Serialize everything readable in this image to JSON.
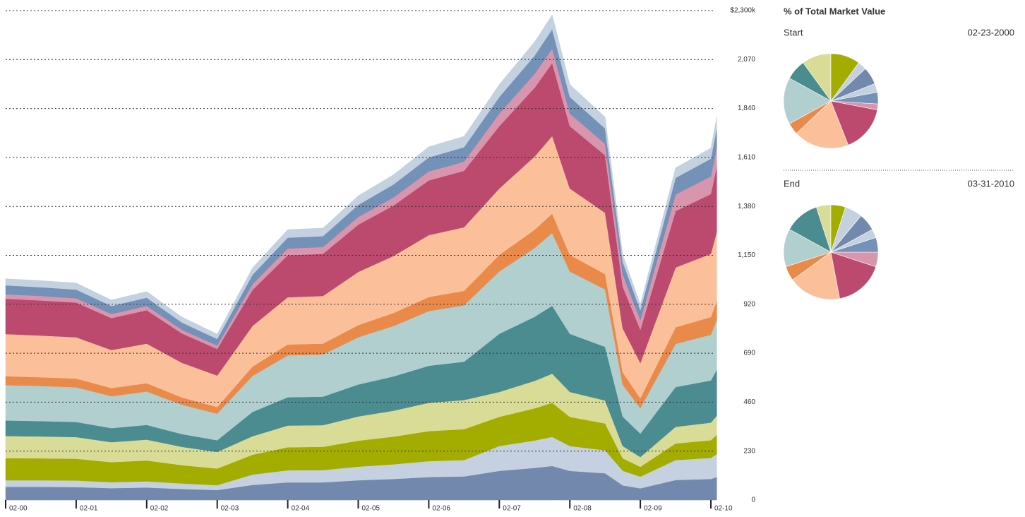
{
  "panel_title": "% of Total Market Value",
  "chart_data": [
    {
      "type": "stacked-area",
      "x": [
        "02-00",
        "08-00",
        "02-01",
        "08-01",
        "02-02",
        "08-02",
        "02-03",
        "08-03",
        "02-04",
        "08-04",
        "02-05",
        "08-05",
        "02-06",
        "08-06",
        "02-07",
        "08-07",
        "11-07",
        "02-08",
        "08-08",
        "11-08",
        "02-09",
        "08-09",
        "02-10",
        "03-10"
      ],
      "xticks": [
        "02-00",
        "02-01",
        "02-02",
        "02-03",
        "02-04",
        "02-05",
        "02-06",
        "02-07",
        "02-08",
        "02-09",
        "02-10"
      ],
      "ylim": [
        0,
        2300
      ],
      "yticks": [
        0,
        230,
        460,
        690,
        920,
        {
          "value": 1150,
          "label": "1,150"
        },
        {
          "value": 1380,
          "label": "1,380"
        },
        {
          "value": 1610,
          "label": "1,610"
        },
        {
          "value": 1840,
          "label": "1,840"
        },
        {
          "value": 2070,
          "label": "2,070"
        },
        {
          "value": 2300,
          "label": "$2,300k"
        }
      ],
      "grid": true,
      "series": [
        {
          "color": "#7289ad",
          "values": [
            62,
            62,
            61,
            56,
            59,
            52,
            47,
            71,
            83,
            83,
            93,
            99,
            108,
            111,
            137,
            151,
            160,
            137,
            126,
            69,
            55,
            94,
            99,
            108
          ]
        },
        {
          "color": "#c5d0e0",
          "values": [
            31,
            31,
            31,
            28,
            29,
            26,
            23,
            49,
            57,
            58,
            64,
            69,
            75,
            77,
            117,
            129,
            137,
            117,
            108,
            69,
            55,
            94,
            99,
            108
          ]
        },
        {
          "color": "#a2ad00",
          "values": [
            104,
            103,
            102,
            94,
            98,
            86,
            78,
            93,
            108,
            109,
            122,
            130,
            141,
            145,
            137,
            151,
            160,
            137,
            126,
            58,
            46,
            78,
            83,
            90
          ]
        },
        {
          "color": "#d9dc96",
          "values": [
            104,
            103,
            102,
            94,
            98,
            86,
            78,
            87,
            102,
            102,
            114,
            122,
            133,
            137,
            117,
            129,
            137,
            117,
            108,
            58,
            46,
            78,
            83,
            90
          ]
        },
        {
          "color": "#4a8c8f",
          "values": [
            73,
            72,
            71,
            66,
            69,
            60,
            55,
            114,
            133,
            134,
            150,
            161,
            174,
            180,
            273,
            301,
            319,
            273,
            252,
            138,
            110,
            187,
            198,
            216
          ]
        },
        {
          "color": "#b1cfcf",
          "values": [
            166,
            165,
            163,
            150,
            157,
            138,
            125,
            169,
            197,
            198,
            222,
            237,
            257,
            265,
            293,
            323,
            342,
            293,
            270,
            150,
            120,
            203,
            215,
            234
          ]
        },
        {
          "color": "#ea8a4a",
          "values": [
            42,
            41,
            41,
            38,
            39,
            34,
            31,
            44,
            51,
            51,
            57,
            61,
            66,
            68,
            78,
            86,
            91,
            78,
            72,
            58,
            46,
            78,
            83,
            90
          ]
        },
        {
          "color": "#fbc09a",
          "values": [
            198,
            196,
            194,
            179,
            186,
            163,
            148,
            191,
            222,
            224,
            250,
            268,
            291,
            299,
            312,
            344,
            365,
            312,
            288,
            207,
            166,
            281,
            297,
            324
          ]
        },
        {
          "color": "#bb4a6e",
          "values": [
            166,
            165,
            163,
            150,
            157,
            138,
            125,
            169,
            197,
            198,
            222,
            237,
            257,
            265,
            293,
            323,
            342,
            293,
            270,
            196,
            156,
            265,
            281,
            306
          ]
        },
        {
          "color": "#d995ad",
          "values": [
            21,
            21,
            20,
            19,
            20,
            17,
            16,
            27,
            32,
            32,
            36,
            38,
            42,
            43,
            59,
            65,
            68,
            59,
            54,
            58,
            46,
            78,
            83,
            90
          ]
        },
        {
          "color": "#7491b7",
          "values": [
            42,
            41,
            41,
            38,
            39,
            34,
            31,
            44,
            51,
            51,
            57,
            61,
            66,
            68,
            78,
            86,
            91,
            78,
            72,
            58,
            46,
            78,
            83,
            90
          ]
        },
        {
          "color": "#c3d1e0",
          "values": [
            31,
            31,
            31,
            28,
            29,
            26,
            23,
            33,
            38,
            38,
            43,
            46,
            50,
            51,
            59,
            65,
            68,
            59,
            54,
            35,
            28,
            47,
            50,
            54
          ]
        }
      ]
    },
    {
      "type": "pie",
      "label": "Start",
      "date": "02-23-2000",
      "values": [
        6,
        3,
        10,
        10,
        7,
        16,
        4,
        19,
        16,
        2,
        4,
        3
      ],
      "colors": [
        "#7289ad",
        "#c5d0e0",
        "#a2ad00",
        "#d9dc96",
        "#4a8c8f",
        "#b1cfcf",
        "#ea8a4a",
        "#fbc09a",
        "#bb4a6e",
        "#d995ad",
        "#7491b7",
        "#c3d1e0"
      ]
    },
    {
      "type": "pie",
      "label": "End",
      "date": "03-31-2010",
      "values": [
        6,
        6,
        5,
        5,
        12,
        13,
        5,
        18,
        17,
        5,
        5,
        3
      ],
      "colors": [
        "#7289ad",
        "#c5d0e0",
        "#a2ad00",
        "#d9dc96",
        "#4a8c8f",
        "#b1cfcf",
        "#ea8a4a",
        "#fbc09a",
        "#bb4a6e",
        "#d995ad",
        "#7491b7",
        "#c3d1e0"
      ]
    }
  ]
}
